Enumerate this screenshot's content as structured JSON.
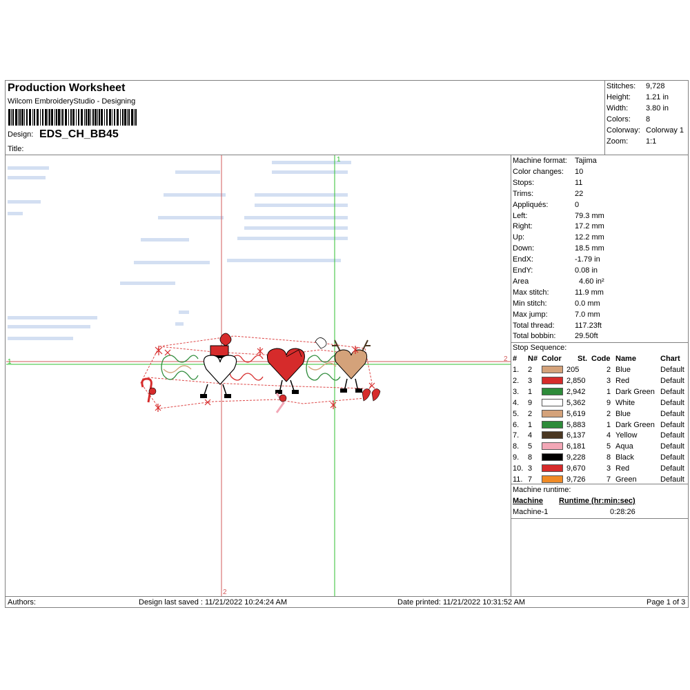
{
  "header": {
    "title": "Production Worksheet",
    "software": "Wilcom EmbroideryStudio - Designing",
    "design_label": "Design:",
    "design_name": "EDS_CH_BB45",
    "title_label": "Title:"
  },
  "summary": [
    {
      "key": "Stitches:",
      "value": "9,728"
    },
    {
      "key": "Height:",
      "value": "1.21 in"
    },
    {
      "key": "Width:",
      "value": "3.80 in"
    },
    {
      "key": "Colors:",
      "value": "8"
    },
    {
      "key": "Colorway:",
      "value": "Colorway 1"
    },
    {
      "key": "Zoom:",
      "value": "1:1"
    }
  ],
  "machine": [
    {
      "key": "Machine format:",
      "value": "Tajima"
    },
    {
      "key": "Color changes:",
      "value": "10"
    },
    {
      "key": "Stops:",
      "value": "11"
    },
    {
      "key": "Trims:",
      "value": "22"
    },
    {
      "key": "Appliqués:",
      "value": "0"
    },
    {
      "key": "Left:",
      "value": "79.3 mm"
    },
    {
      "key": "Right:",
      "value": "17.2 mm"
    },
    {
      "key": "Up:",
      "value": "12.2 mm"
    },
    {
      "key": "Down:",
      "value": "18.5 mm"
    },
    {
      "key": "EndX:",
      "value": "-1.79 in"
    },
    {
      "key": "EndY:",
      "value": "0.08 in"
    },
    {
      "key": "Area",
      "value": "4.60 in²"
    },
    {
      "key": "Max stitch:",
      "value": "11.9 mm"
    },
    {
      "key": "Min stitch:",
      "value": "0.0 mm"
    },
    {
      "key": "Max jump:",
      "value": "7.0 mm"
    },
    {
      "key": "Total thread:",
      "value": "117.23ft"
    },
    {
      "key": "Total bobbin:",
      "value": "29.50ft"
    }
  ],
  "stop_sequence": {
    "title": "Stop Sequence:",
    "columns": {
      "num": "#",
      "needle": "N#",
      "color": "Color",
      "stitches": "St.",
      "code": "Code",
      "name": "Name",
      "chart": "Chart"
    },
    "rows": [
      {
        "num": "1.",
        "needle": "2",
        "color": "#d4a27a",
        "stitches": "205",
        "code": "2",
        "name": "Blue",
        "chart": "Default"
      },
      {
        "num": "2.",
        "needle": "3",
        "color": "#d62b2b",
        "stitches": "2,850",
        "code": "3",
        "name": "Red",
        "chart": "Default"
      },
      {
        "num": "3.",
        "needle": "1",
        "color": "#2e8b3a",
        "stitches": "2,942",
        "code": "1",
        "name": "Dark Green",
        "chart": "Default"
      },
      {
        "num": "4.",
        "needle": "9",
        "color": "#ffffff",
        "stitches": "5,362",
        "code": "9",
        "name": "White",
        "chart": "Default"
      },
      {
        "num": "5.",
        "needle": "2",
        "color": "#d4a27a",
        "stitches": "5,619",
        "code": "2",
        "name": "Blue",
        "chart": "Default"
      },
      {
        "num": "6.",
        "needle": "1",
        "color": "#2e8b3a",
        "stitches": "5,883",
        "code": "1",
        "name": "Dark Green",
        "chart": "Default"
      },
      {
        "num": "7.",
        "needle": "4",
        "color": "#4a3722",
        "stitches": "6,137",
        "code": "4",
        "name": "Yellow",
        "chart": "Default"
      },
      {
        "num": "8.",
        "needle": "5",
        "color": "#f2a7b6",
        "stitches": "6,181",
        "code": "5",
        "name": "Aqua",
        "chart": "Default"
      },
      {
        "num": "9.",
        "needle": "8",
        "color": "#000000",
        "stitches": "9,228",
        "code": "8",
        "name": "Black",
        "chart": "Default"
      },
      {
        "num": "10.",
        "needle": "3",
        "color": "#d62b2b",
        "stitches": "9,670",
        "code": "3",
        "name": "Red",
        "chart": "Default"
      },
      {
        "num": "11.",
        "needle": "7",
        "color": "#f08a24",
        "stitches": "9,726",
        "code": "7",
        "name": "Green",
        "chart": "Default"
      }
    ]
  },
  "runtime": {
    "title": "Machine runtime:",
    "col_machine": "Machine",
    "col_runtime": "Runtime (hr:min:sec)",
    "machine": "Machine-1",
    "time": "0:28:26"
  },
  "canvas": {
    "marker_1": "1",
    "marker_2": "2"
  },
  "footer": {
    "authors": "Authors:",
    "saved": "Design last saved : 11/21/2022 10:24:24 AM",
    "printed": "Date printed: 11/21/2022 10:31:52 AM",
    "page": "Page 1 of 3"
  }
}
